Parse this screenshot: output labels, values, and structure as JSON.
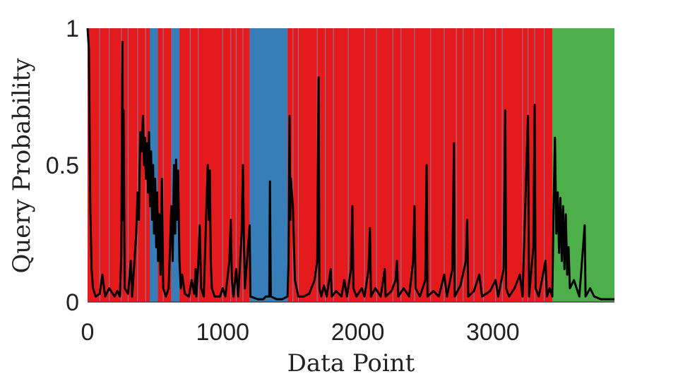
{
  "chart_data": {
    "type": "area",
    "xlabel": "Data Point",
    "ylabel": "Query Probability",
    "xlim": [
      0,
      3900
    ],
    "ylim": [
      0,
      1
    ],
    "x_ticks": [
      0,
      1000,
      2000,
      3000
    ],
    "y_ticks": [
      0,
      0.5,
      1
    ],
    "y_tick_labels": [
      "0",
      "0.5",
      "1"
    ],
    "grid": false,
    "legend": "none",
    "colors": {
      "red_region": "#e41a1c",
      "blue_region": "#377eb8",
      "green_region": "#4daf4a",
      "separator": "#8c7f9e",
      "query_line": "#000000"
    },
    "background_regions": [
      {
        "color": "red",
        "x_start": 0,
        "x_end": 460
      },
      {
        "color": "blue",
        "x_start": 460,
        "x_end": 520
      },
      {
        "color": "red",
        "x_start": 520,
        "x_end": 620
      },
      {
        "color": "blue",
        "x_start": 620,
        "x_end": 680
      },
      {
        "color": "red",
        "x_start": 680,
        "x_end": 1200
      },
      {
        "color": "blue",
        "x_start": 1200,
        "x_end": 1480
      },
      {
        "color": "red",
        "x_start": 1480,
        "x_end": 3440
      },
      {
        "color": "green",
        "x_start": 3440,
        "x_end": 3900
      }
    ],
    "separator_lines_x": [
      90,
      160,
      250,
      300,
      370,
      430,
      560,
      760,
      820,
      1000,
      1060,
      1100,
      1150,
      1520,
      1560,
      1700,
      1760,
      1820,
      1930,
      2050,
      2140,
      2260,
      2320,
      2420,
      2540,
      2640,
      2730,
      2780,
      2860,
      2930,
      3020,
      3070,
      3220,
      3260,
      3310,
      3380
    ],
    "query_probability": [
      [
        0,
        1.0
      ],
      [
        10,
        0.92
      ],
      [
        20,
        0.35
      ],
      [
        30,
        0.12
      ],
      [
        40,
        0.05
      ],
      [
        60,
        0.02
      ],
      [
        90,
        0.03
      ],
      [
        110,
        0.1
      ],
      [
        130,
        0.02
      ],
      [
        160,
        0.05
      ],
      [
        200,
        0.02
      ],
      [
        220,
        0.04
      ],
      [
        240,
        0.02
      ],
      [
        250,
        0.18
      ],
      [
        258,
        0.95
      ],
      [
        262,
        0.3
      ],
      [
        266,
        0.7
      ],
      [
        275,
        0.05
      ],
      [
        300,
        0.03
      ],
      [
        320,
        0.15
      ],
      [
        330,
        0.02
      ],
      [
        360,
        0.25
      ],
      [
        370,
        0.4
      ],
      [
        380,
        0.3
      ],
      [
        390,
        0.62
      ],
      [
        400,
        0.55
      ],
      [
        410,
        0.68
      ],
      [
        418,
        0.5
      ],
      [
        425,
        0.6
      ],
      [
        432,
        0.45
      ],
      [
        440,
        0.58
      ],
      [
        448,
        0.4
      ],
      [
        455,
        0.62
      ],
      [
        462,
        0.35
      ],
      [
        470,
        0.55
      ],
      [
        478,
        0.3
      ],
      [
        485,
        0.5
      ],
      [
        492,
        0.25
      ],
      [
        500,
        0.45
      ],
      [
        508,
        0.2
      ],
      [
        515,
        0.4
      ],
      [
        522,
        0.15
      ],
      [
        530,
        0.32
      ],
      [
        540,
        0.1
      ],
      [
        550,
        0.45
      ],
      [
        560,
        0.05
      ],
      [
        580,
        0.02
      ],
      [
        600,
        0.05
      ],
      [
        610,
        0.2
      ],
      [
        620,
        0.35
      ],
      [
        630,
        0.15
      ],
      [
        640,
        0.5
      ],
      [
        648,
        0.25
      ],
      [
        655,
        0.52
      ],
      [
        662,
        0.3
      ],
      [
        670,
        0.48
      ],
      [
        680,
        0.15
      ],
      [
        690,
        0.05
      ],
      [
        700,
        0.1
      ],
      [
        720,
        0.03
      ],
      [
        750,
        0.02
      ],
      [
        770,
        0.08
      ],
      [
        790,
        0.03
      ],
      [
        800,
        0.12
      ],
      [
        805,
        0.02
      ],
      [
        820,
        0.15
      ],
      [
        830,
        0.28
      ],
      [
        840,
        0.05
      ],
      [
        860,
        0.02
      ],
      [
        880,
        0.35
      ],
      [
        890,
        0.5
      ],
      [
        898,
        0.3
      ],
      [
        905,
        0.48
      ],
      [
        912,
        0.15
      ],
      [
        920,
        0.05
      ],
      [
        940,
        0.02
      ],
      [
        980,
        0.02
      ],
      [
        1000,
        0.05
      ],
      [
        1020,
        0.02
      ],
      [
        1050,
        0.15
      ],
      [
        1060,
        0.3
      ],
      [
        1068,
        0.08
      ],
      [
        1080,
        0.02
      ],
      [
        1100,
        0.12
      ],
      [
        1115,
        0.02
      ],
      [
        1140,
        0.25
      ],
      [
        1150,
        0.5
      ],
      [
        1158,
        0.2
      ],
      [
        1165,
        0.05
      ],
      [
        1200,
        0.28
      ],
      [
        1205,
        0.02
      ],
      [
        1260,
        0.01
      ],
      [
        1300,
        0.01
      ],
      [
        1320,
        0.02
      ],
      [
        1345,
        0.02
      ],
      [
        1350,
        0.44
      ],
      [
        1356,
        0.02
      ],
      [
        1400,
        0.01
      ],
      [
        1440,
        0.01
      ],
      [
        1480,
        0.02
      ],
      [
        1488,
        0.15
      ],
      [
        1495,
        0.68
      ],
      [
        1500,
        0.3
      ],
      [
        1505,
        0.45
      ],
      [
        1512,
        0.4
      ],
      [
        1520,
        0.35
      ],
      [
        1528,
        0.2
      ],
      [
        1535,
        0.08
      ],
      [
        1560,
        0.02
      ],
      [
        1600,
        0.02
      ],
      [
        1640,
        0.03
      ],
      [
        1680,
        0.08
      ],
      [
        1700,
        0.15
      ],
      [
        1710,
        0.82
      ],
      [
        1716,
        0.05
      ],
      [
        1730,
        0.02
      ],
      [
        1750,
        0.06
      ],
      [
        1770,
        0.02
      ],
      [
        1800,
        0.12
      ],
      [
        1808,
        0.02
      ],
      [
        1840,
        0.04
      ],
      [
        1880,
        0.02
      ],
      [
        1900,
        0.08
      ],
      [
        1920,
        0.02
      ],
      [
        1950,
        0.12
      ],
      [
        1960,
        0.35
      ],
      [
        1968,
        0.05
      ],
      [
        1990,
        0.02
      ],
      [
        2030,
        0.05
      ],
      [
        2050,
        0.02
      ],
      [
        2080,
        0.12
      ],
      [
        2090,
        0.27
      ],
      [
        2098,
        0.02
      ],
      [
        2130,
        0.05
      ],
      [
        2170,
        0.02
      ],
      [
        2200,
        0.12
      ],
      [
        2206,
        0.02
      ],
      [
        2250,
        0.04
      ],
      [
        2280,
        0.08
      ],
      [
        2290,
        0.15
      ],
      [
        2300,
        0.02
      ],
      [
        2340,
        0.05
      ],
      [
        2380,
        0.02
      ],
      [
        2410,
        0.15
      ],
      [
        2420,
        0.35
      ],
      [
        2428,
        0.05
      ],
      [
        2460,
        0.02
      ],
      [
        2500,
        0.08
      ],
      [
        2510,
        0.5
      ],
      [
        2516,
        0.02
      ],
      [
        2560,
        0.04
      ],
      [
        2600,
        0.02
      ],
      [
        2640,
        0.1
      ],
      [
        2660,
        0.02
      ],
      [
        2700,
        0.12
      ],
      [
        2712,
        0.58
      ],
      [
        2718,
        0.02
      ],
      [
        2760,
        0.06
      ],
      [
        2800,
        0.15
      ],
      [
        2810,
        0.3
      ],
      [
        2818,
        0.02
      ],
      [
        2860,
        0.04
      ],
      [
        2900,
        0.1
      ],
      [
        2920,
        0.02
      ],
      [
        2980,
        0.04
      ],
      [
        3020,
        0.08
      ],
      [
        3040,
        0.02
      ],
      [
        3080,
        0.12
      ],
      [
        3092,
        0.7
      ],
      [
        3098,
        0.05
      ],
      [
        3120,
        0.02
      ],
      [
        3160,
        0.05
      ],
      [
        3200,
        0.1
      ],
      [
        3220,
        0.02
      ],
      [
        3260,
        0.68
      ],
      [
        3268,
        0.02
      ],
      [
        3300,
        0.2
      ],
      [
        3310,
        0.72
      ],
      [
        3316,
        0.05
      ],
      [
        3340,
        0.02
      ],
      [
        3390,
        0.15
      ],
      [
        3400,
        0.02
      ],
      [
        3420,
        0.05
      ],
      [
        3440,
        0.02
      ],
      [
        3450,
        0.35
      ],
      [
        3460,
        0.6
      ],
      [
        3470,
        0.25
      ],
      [
        3480,
        0.4
      ],
      [
        3490,
        0.18
      ],
      [
        3500,
        0.38
      ],
      [
        3510,
        0.15
      ],
      [
        3520,
        0.35
      ],
      [
        3530,
        0.12
      ],
      [
        3540,
        0.32
      ],
      [
        3550,
        0.1
      ],
      [
        3560,
        0.2
      ],
      [
        3570,
        0.05
      ],
      [
        3600,
        0.08
      ],
      [
        3640,
        0.02
      ],
      [
        3680,
        0.28
      ],
      [
        3686,
        0.02
      ],
      [
        3720,
        0.05
      ],
      [
        3750,
        0.02
      ],
      [
        3800,
        0.01
      ],
      [
        3850,
        0.01
      ],
      [
        3900,
        0.01
      ]
    ]
  }
}
